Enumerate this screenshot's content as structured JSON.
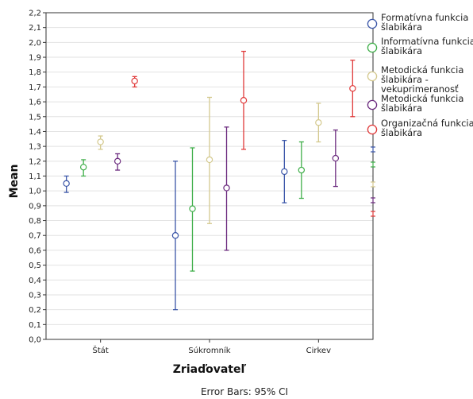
{
  "chart_data": {
    "type": "scatter",
    "subtype": "error-bar means with 95% confidence intervals",
    "xlabel": "Zriaďovateľ",
    "ylabel": "Mean",
    "footnote": "Error Bars: 95% CI",
    "categories": [
      "Štát",
      "Súkromník",
      "Cirkev"
    ],
    "ylim": [
      0,
      2.2
    ],
    "yticks": [
      "0,0",
      "0,1",
      "0,2",
      "0,3",
      "0,4",
      "0,5",
      "0,6",
      "0,7",
      "0,8",
      "0,9",
      "1,0",
      "1,1",
      "1,2",
      "1,3",
      "1,4",
      "1,5",
      "1,6",
      "1,7",
      "1,8",
      "1,9",
      "2,0",
      "2,1",
      "2,2"
    ],
    "grid": "horizontal",
    "legend_position": "right",
    "series": [
      {
        "name": "Formatívna funkcia šlabikára",
        "legend_lines": [
          "Formatívna funkcia",
          "šlabikára"
        ],
        "color": "#3b56a8",
        "mean": [
          1.05,
          0.7,
          1.13
        ],
        "ci_low": [
          0.99,
          0.2,
          0.92
        ],
        "ci_high": [
          1.1,
          1.2,
          1.34
        ]
      },
      {
        "name": "Informatívna funkcia šlabikára",
        "legend_lines": [
          "Informatívna funkcia",
          "šlabikára"
        ],
        "color": "#3fae49",
        "mean": [
          1.16,
          0.88,
          1.14
        ],
        "ci_low": [
          1.1,
          0.46,
          0.95
        ],
        "ci_high": [
          1.21,
          1.29,
          1.33
        ]
      },
      {
        "name": "Metodická funkcia šlabikára - vekuprimeranosť",
        "legend_lines": [
          "Metodická funkcia",
          "šlabikára -",
          "vekuprimeranosť"
        ],
        "color": "#d4c98e",
        "mean": [
          1.33,
          1.21,
          1.46
        ],
        "ci_low": [
          1.28,
          0.78,
          1.33
        ],
        "ci_high": [
          1.37,
          1.63,
          1.59
        ]
      },
      {
        "name": "Metodická funkcia šlabikára",
        "legend_lines": [
          "Metodická funkcia",
          "šlabikára"
        ],
        "color": "#6b2a7e",
        "mean": [
          1.2,
          1.02,
          1.22
        ],
        "ci_low": [
          1.14,
          0.6,
          1.03
        ],
        "ci_high": [
          1.25,
          1.43,
          1.41
        ]
      },
      {
        "name": "Organizačná funkcia šlabikára",
        "legend_lines": [
          "Organizačná funkcia",
          "šlabikára"
        ],
        "color": "#e03a3a",
        "mean": [
          1.74,
          1.61,
          1.69
        ],
        "ci_low": [
          1.7,
          1.28,
          1.5
        ],
        "ci_high": [
          1.77,
          1.94,
          1.88
        ]
      }
    ]
  }
}
